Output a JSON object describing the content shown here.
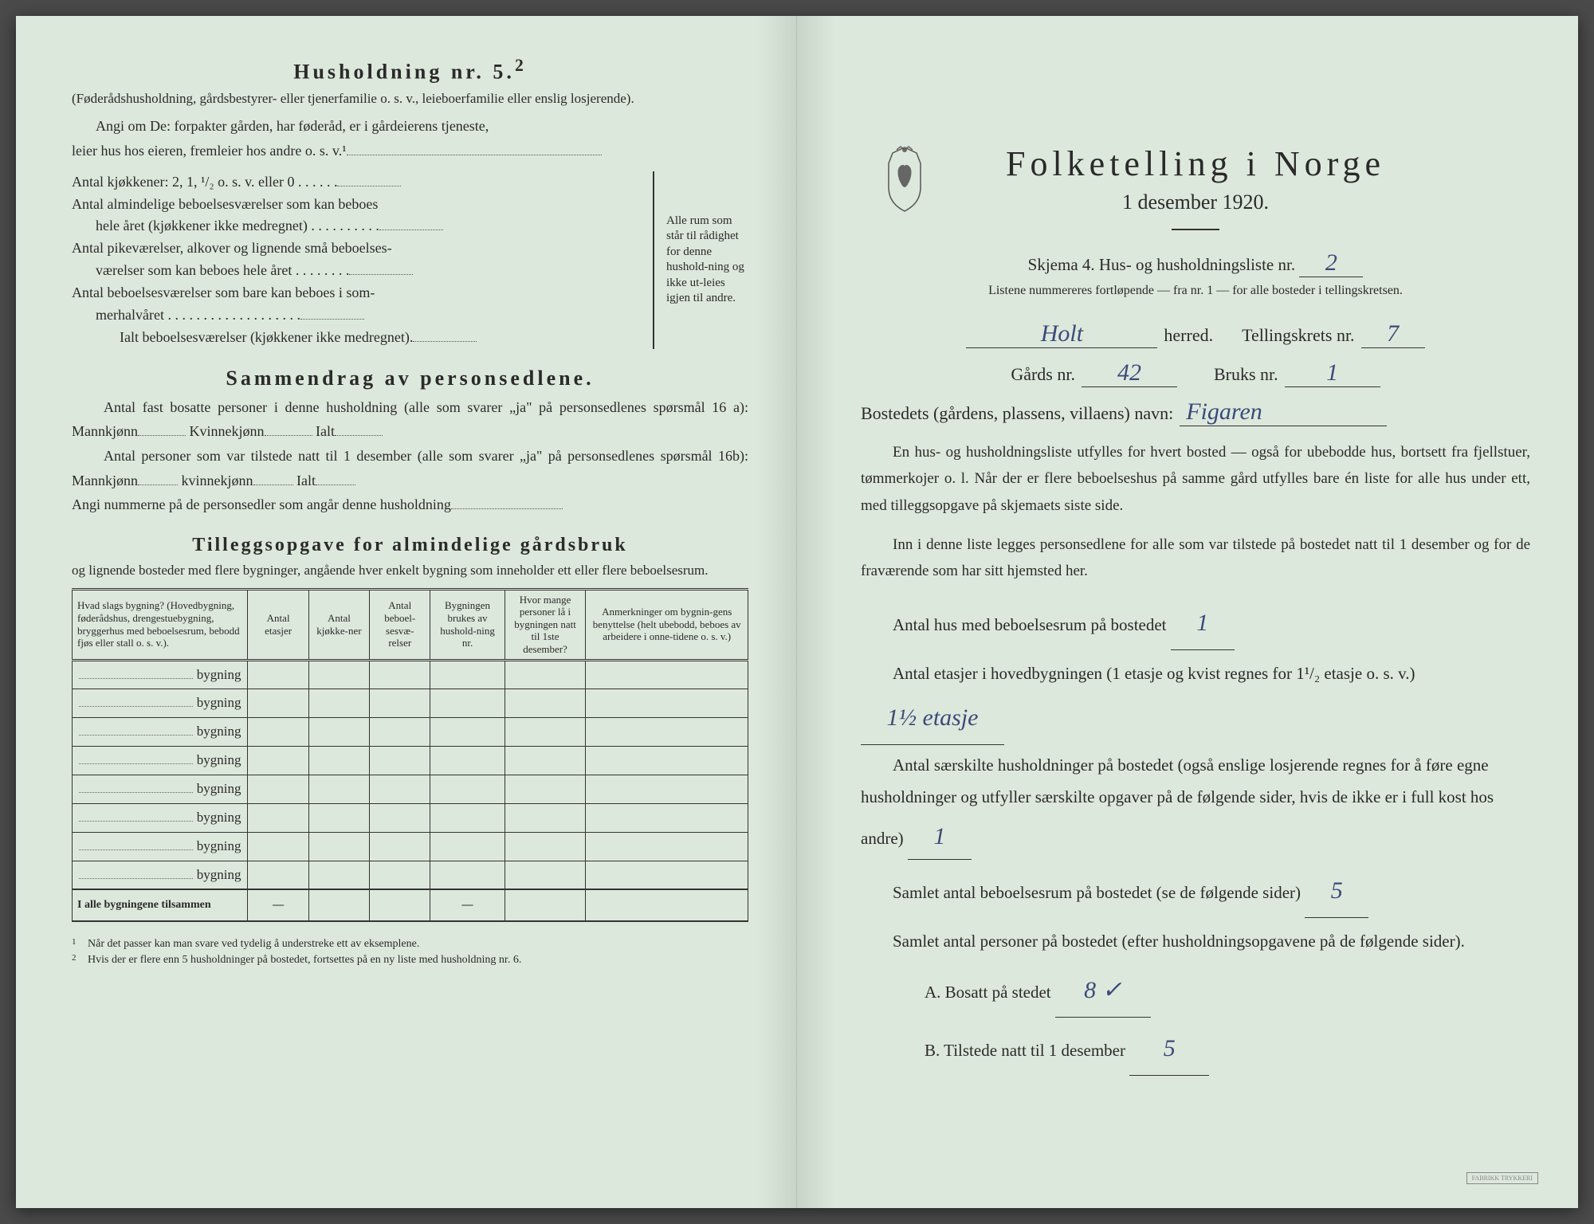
{
  "colors": {
    "paper": "#dde8dc",
    "paper_shadow": "#c8d4c8",
    "text": "#2a2a2a",
    "ink_handwritten": "#3a4a7a",
    "border": "#333333",
    "background": "#4a4a4a"
  },
  "left_page": {
    "household_heading": "Husholdning nr. 5.",
    "household_heading_sup": "2",
    "household_sub": "(Føderådshusholdning, gårdsbestyrer- eller tjenerfamilie o. s. v., leieboerfamilie eller enslig losjerende).",
    "angi_line1": "Angi om De:  forpakter gården, har føderåd, er i gårdeierens tjeneste,",
    "angi_line2": "leier hus hos eieren, fremleier hos andre o. s. v.¹",
    "kitchens_label": "Antal kjøkkener: 2, 1, ¹/₂ o. s. v. eller 0 . . . . . .",
    "rooms_block": {
      "l1": "Antal almindelige beboelsesværelser som kan beboes",
      "l2": "hele året (kjøkkener ikke medregnet) . . . . . . . . . .",
      "l3": "Antal pikeværelser, alkover og lignende små beboelses-",
      "l4": "værelser som kan beboes hele året . . . . . . . .",
      "l5": "Antal beboelsesværelser som bare kan beboes i som-",
      "l6": "merhalvåret . . . . . . . . . . . . . . . . . . .",
      "sum": "Ialt beboelsesværelser (kjøkkener ikke medregnet).",
      "brace_text": "Alle rum som står til rådighet for denne hushold-ning og ikke ut-leies igjen til andre."
    },
    "summary_heading": "Sammendrag av personsedlene.",
    "summary_p1a": "Antal fast bosatte personer i denne husholdning (alle som svarer „ja\" på personsedlenes spørsmål 16 a): Mannkjønn",
    "summary_p1b": "Kvinnekjønn",
    "summary_p1c": "Ialt",
    "summary_p2a": "Antal personer som var tilstede natt til 1 desember (alle som svarer „ja\" på personsedlenes spørsmål 16b): Mannkjønn",
    "summary_p2b": "kvinnekjønn",
    "summary_p2c": "Ialt",
    "summary_p3": "Angi nummerne på de personsedler som angår denne husholdning",
    "tillegg_heading": "Tilleggsopgave for almindelige gårdsbruk",
    "tillegg_sub": "og lignende bosteder med flere bygninger, angående hver enkelt bygning som inneholder ett eller flere beboelsesrum.",
    "table": {
      "headers": [
        "Hvad slags bygning?\n(Hovedbygning, føderådshus, drengestuebygning, bryggerhus med beboelsesrum, bebodd fjøs eller stall o. s. v.).",
        "Antal etasjer",
        "Antal kjøkke-ner",
        "Antal beboel-sesvæ-relser",
        "Bygningen brukes av hushold-ning nr.",
        "Hvor mange personer lå i bygningen natt til 1ste desember?",
        "Anmerkninger om bygnin-gens benyttelse (helt ubebodd, beboes av arbeidere i onne-tidene o. s. v.)"
      ],
      "row_label": "bygning",
      "row_count": 8,
      "total_label": "I alle bygningene tilsammen"
    },
    "footnote1": "Når det passer kan man svare ved tydelig å understreke ett av eksemplene.",
    "footnote2": "Hvis der er flere enn 5 husholdninger på bostedet, fortsettes på en ny liste med husholdning nr. 6."
  },
  "right_page": {
    "main_title": "Folketelling i Norge",
    "subtitle": "1 desember 1920.",
    "skjema_line": "Skjema 4.  Hus- og husholdningsliste nr.",
    "skjema_nr": "2",
    "sub_note": "Listene nummereres fortløpende — fra nr. 1 — for alle bosteder i tellingskretsen.",
    "herred_label": "herred.",
    "herred_value": "Holt",
    "krets_label": "Tellingskrets nr.",
    "krets_value": "7",
    "gards_label": "Gårds nr.",
    "gards_value": "42",
    "bruks_label": "Bruks nr.",
    "bruks_value": "1",
    "bosted_label": "Bostedets (gårdens, plassens, villaens) navn:",
    "bosted_value": "Figaren",
    "intro_p1": "En hus- og husholdningsliste utfylles for hvert bosted — også for ubebodde hus, bortsett fra fjellstuer, tømmerkojer o. l. Når der er flere beboelseshus på samme gård utfylles bare én liste for alle hus under ett, med tilleggsopgave på skjemaets siste side.",
    "intro_p2": "Inn i denne liste legges personsedlene for alle som var tilstede på bostedet natt til 1 desember og for de fraværende som har sitt hjemsted her.",
    "q1_label": "Antal hus med beboelsesrum på bostedet",
    "q1_value": "1",
    "q2_label_a": "Antal etasjer i hovedbygningen (1 etasje og kvist regnes for 1¹/₂ etasje o. s. v.)",
    "q2_value": "1½ etasje",
    "q3_label": "Antal særskilte husholdninger på bostedet (også enslige losjerende regnes for å føre egne husholdninger og utfyller særskilte opgaver på de følgende sider, hvis de ikke er i full kost hos andre)",
    "q3_value": "1",
    "q4_label": "Samlet antal beboelsesrum på bostedet (se de følgende sider)",
    "q4_value": "5",
    "q5_label": "Samlet antal personer på bostedet (efter husholdningsopgavene på de følgende sider).",
    "q5a_label": "A.  Bosatt på stedet",
    "q5a_value": "8 ✓",
    "q5b_label": "B.  Tilstede natt til 1 desember",
    "q5b_value": "5"
  }
}
